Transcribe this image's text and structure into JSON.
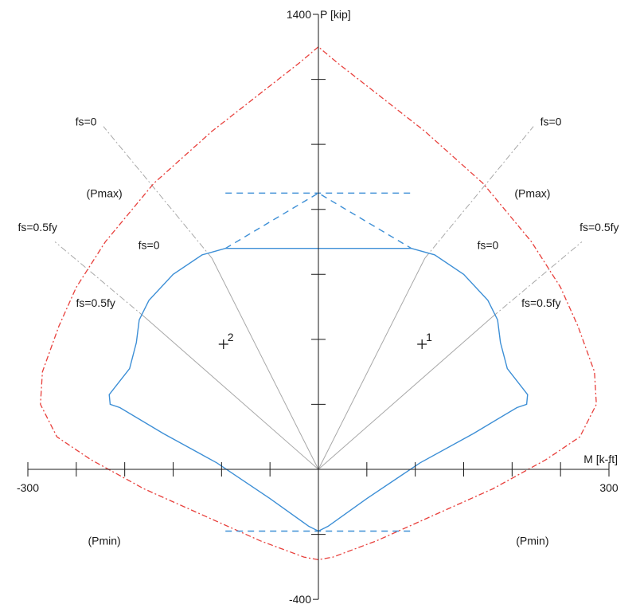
{
  "chart_data": {
    "type": "line",
    "title": "",
    "xlabel": "M [k-ft]",
    "ylabel": "P [kip]",
    "xlim": [
      -300,
      300
    ],
    "ylim": [
      -400,
      1400
    ],
    "x_tick_labels": [
      "-300",
      "300"
    ],
    "y_tick_labels": [
      "1400",
      "-400"
    ],
    "x_ticks": [
      -300,
      -250,
      -200,
      -150,
      -100,
      -50,
      50,
      100,
      150,
      200,
      250,
      300
    ],
    "y_ticks": [
      -200,
      200,
      400,
      600,
      800,
      1000,
      1200,
      1400
    ],
    "colors": {
      "design": "#3d8fd6",
      "nominal": "#e8403c",
      "radial": "#a8a8a8",
      "axis": "#1a1a1a"
    },
    "series": [
      {
        "style": "dashed-red",
        "x": [
          0,
          -20,
          -50,
          -110,
          -170,
          -220,
          -250,
          -268,
          -285,
          -287,
          -270,
          -235,
          -180,
          -120,
          -60,
          -15,
          0,
          15,
          60,
          120,
          180,
          235,
          270,
          287,
          285,
          268,
          250,
          220,
          170,
          110,
          50,
          20,
          0
        ],
        "y": [
          1300,
          1250,
          1180,
          1040,
          880,
          700,
          560,
          440,
          300,
          200,
          100,
          30,
          -60,
          -140,
          -220,
          -270,
          -278,
          -270,
          -220,
          -140,
          -60,
          30,
          100,
          200,
          300,
          440,
          560,
          700,
          880,
          1040,
          1180,
          1250,
          1300
        ]
      },
      {
        "style": "solid-blue",
        "x": [
          0,
          -96,
          -120,
          -150,
          -175,
          -185,
          -188,
          -195,
          -216,
          -215,
          -205,
          -160,
          -105,
          -50,
          -10,
          0,
          10,
          50,
          105,
          160,
          205,
          215,
          216,
          195,
          188,
          185,
          175,
          150,
          120,
          96,
          0
        ],
        "y": [
          680,
          680,
          660,
          600,
          520,
          460,
          390,
          310,
          230,
          200,
          190,
          110,
          20,
          -90,
          -175,
          -190,
          -175,
          -90,
          20,
          110,
          190,
          200,
          230,
          310,
          390,
          460,
          520,
          600,
          660,
          680,
          680
        ]
      }
    ],
    "reference_lines": [
      {
        "label": "(Pmax)",
        "y": 850,
        "x": [
          -96,
          96
        ]
      },
      {
        "label": "(Pmin)",
        "y": -190,
        "x": [
          -96,
          96
        ]
      }
    ],
    "points": [
      {
        "label": "1",
        "x": 107,
        "y": 385
      },
      {
        "label": "2",
        "x": -98,
        "y": 385
      }
    ],
    "radial_lines": [
      {
        "label": "fs=0",
        "x": -110,
        "y": 650,
        "x_end": -222,
        "y_end": 1055
      },
      {
        "label": "fs=0",
        "x": 110,
        "y": 650,
        "x_end": 222,
        "y_end": 1055
      },
      {
        "label": "fs=0.5fy",
        "x": -180,
        "y": 470,
        "x_end": -272,
        "y_end": 700
      },
      {
        "label": "fs=0.5fy",
        "x": 180,
        "y": 470,
        "x_end": 272,
        "y_end": 700
      }
    ],
    "annotations": [
      {
        "text": "fs=0",
        "x": -240,
        "y": 1070
      },
      {
        "text": "fs=0",
        "x": 240,
        "y": 1070
      },
      {
        "text": "fs=0.5fy",
        "x": -290,
        "y": 745
      },
      {
        "text": "fs=0.5fy",
        "x": 290,
        "y": 745
      },
      {
        "text": "fs=0",
        "x": -175,
        "y": 690
      },
      {
        "text": "fs=0",
        "x": 175,
        "y": 690
      },
      {
        "text": "fs=0.5fy",
        "x": -230,
        "y": 512
      },
      {
        "text": "fs=0.5fy",
        "x": 230,
        "y": 512
      },
      {
        "text": "(Pmax)",
        "x": -221,
        "y": 850
      },
      {
        "text": "(Pmax)",
        "x": 221,
        "y": 850
      },
      {
        "text": "(Pmin)",
        "x": -221,
        "y": -220
      },
      {
        "text": "(Pmin)",
        "x": 221,
        "y": -220
      }
    ],
    "legend": "none",
    "grid": false
  }
}
